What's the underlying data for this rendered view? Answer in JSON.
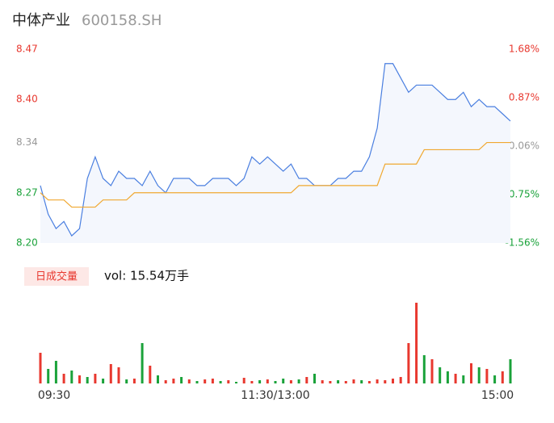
{
  "chart_data": {
    "type": "intraday",
    "title": "中体产业",
    "subtitle": "600158.SH",
    "x": [
      0,
      4,
      8,
      12,
      16,
      20,
      24,
      28,
      32,
      36,
      40,
      44,
      48,
      52,
      56,
      60,
      64,
      68,
      72,
      76,
      80,
      84,
      88,
      92,
      96,
      100,
      104,
      108,
      112,
      116,
      120,
      124,
      128,
      132,
      136,
      140,
      144,
      148,
      152,
      156,
      160,
      164,
      168,
      172,
      176,
      180,
      184,
      188,
      192,
      196,
      200,
      204,
      208,
      212,
      216,
      220,
      224,
      228,
      232,
      236,
      240
    ],
    "xlim": [
      0,
      240
    ],
    "xticks": [
      {
        "value": 0,
        "label": "09:30"
      },
      {
        "value": 120,
        "label": "11:30/13:00"
      },
      {
        "value": 240,
        "label": "15:00"
      }
    ],
    "ylim": [
      8.2,
      8.47
    ],
    "yticks": [
      8.47,
      {
        "value": 8.4,
        "label": "8.40"
      },
      8.34,
      8.27,
      {
        "value": 8.2,
        "label": "8.20"
      }
    ],
    "ytick_colors": [
      "#e8382f",
      "#e8382f",
      "#999999",
      "#1aa23a",
      "#1aa23a"
    ],
    "y2lim": [
      -1.56,
      1.68
    ],
    "y2ticks": [
      {
        "value": 1.68,
        "label": "1.68%"
      },
      {
        "value": 0.87,
        "label": "0.87%"
      },
      {
        "value": 0.06,
        "label": "0.06%"
      },
      {
        "value": -0.75,
        "label": "-0.75%"
      },
      {
        "value": -1.56,
        "label": "-1.56%"
      }
    ],
    "series": [
      {
        "color": "#4a7fe0",
        "fill": "#f4f7fd",
        "values": [
          8.28,
          8.24,
          8.22,
          8.23,
          8.21,
          8.22,
          8.29,
          8.32,
          8.29,
          8.28,
          8.3,
          8.29,
          8.29,
          8.28,
          8.3,
          8.28,
          8.27,
          8.29,
          8.29,
          8.29,
          8.28,
          8.28,
          8.29,
          8.29,
          8.29,
          8.28,
          8.29,
          8.32,
          8.31,
          8.32,
          8.31,
          8.3,
          8.31,
          8.29,
          8.29,
          8.28,
          8.28,
          8.28,
          8.29,
          8.29,
          8.3,
          8.3,
          8.32,
          8.36,
          8.45,
          8.45,
          8.43,
          8.41,
          8.42,
          8.42,
          8.42,
          8.41,
          8.4,
          8.4,
          8.41,
          8.39,
          8.4,
          8.39,
          8.39,
          8.38,
          8.37
        ]
      },
      {
        "color": "#f0a830",
        "values": [
          8.27,
          8.26,
          8.26,
          8.26,
          8.25,
          8.25,
          8.25,
          8.25,
          8.26,
          8.26,
          8.26,
          8.26,
          8.27,
          8.27,
          8.27,
          8.27,
          8.27,
          8.27,
          8.27,
          8.27,
          8.27,
          8.27,
          8.27,
          8.27,
          8.27,
          8.27,
          8.27,
          8.27,
          8.27,
          8.27,
          8.27,
          8.27,
          8.27,
          8.28,
          8.28,
          8.28,
          8.28,
          8.28,
          8.28,
          8.28,
          8.28,
          8.28,
          8.28,
          8.28,
          8.31,
          8.31,
          8.31,
          8.31,
          8.31,
          8.33,
          8.33,
          8.33,
          8.33,
          8.33,
          8.33,
          8.33,
          8.33,
          8.34,
          8.34,
          8.34,
          8.34
        ]
      }
    ],
    "volume_button": "日成交量",
    "volume_text": "vol: 15.54万手",
    "volume": {
      "values": [
        38,
        18,
        28,
        12,
        16,
        10,
        8,
        12,
        6,
        24,
        20,
        5,
        6,
        50,
        22,
        10,
        4,
        6,
        8,
        5,
        3,
        5,
        6,
        3,
        4,
        2,
        7,
        3,
        4,
        5,
        3,
        6,
        4,
        5,
        8,
        12,
        4,
        3,
        4,
        3,
        5,
        4,
        3,
        5,
        4,
        6,
        8,
        50,
        100,
        35,
        30,
        20,
        15,
        12,
        10,
        25,
        20,
        18,
        10,
        15,
        30
      ],
      "colors": [
        "#e8382f",
        "#1aa23a",
        "#1aa23a",
        "#e8382f",
        "#1aa23a",
        "#e8382f",
        "#1aa23a",
        "#e8382f",
        "#1aa23a",
        "#e8382f",
        "#e8382f",
        "#1aa23a",
        "#e8382f",
        "#1aa23a",
        "#e8382f",
        "#1aa23a",
        "#e8382f",
        "#e8382f",
        "#1aa23a",
        "#e8382f",
        "#1aa23a",
        "#e8382f",
        "#e8382f",
        "#1aa23a",
        "#e8382f",
        "#1aa23a",
        "#e8382f",
        "#e8382f",
        "#1aa23a",
        "#e8382f",
        "#1aa23a",
        "#1aa23a",
        "#e8382f",
        "#1aa23a",
        "#e8382f",
        "#1aa23a",
        "#e8382f",
        "#e8382f",
        "#1aa23a",
        "#e8382f",
        "#e8382f",
        "#1aa23a",
        "#e8382f",
        "#e8382f",
        "#e8382f",
        "#e8382f",
        "#e8382f",
        "#e8382f",
        "#e8382f",
        "#1aa23a",
        "#e8382f",
        "#1aa23a",
        "#1aa23a",
        "#e8382f",
        "#1aa23a",
        "#e8382f",
        "#1aa23a",
        "#e8382f",
        "#1aa23a",
        "#e8382f",
        "#1aa23a"
      ]
    }
  }
}
